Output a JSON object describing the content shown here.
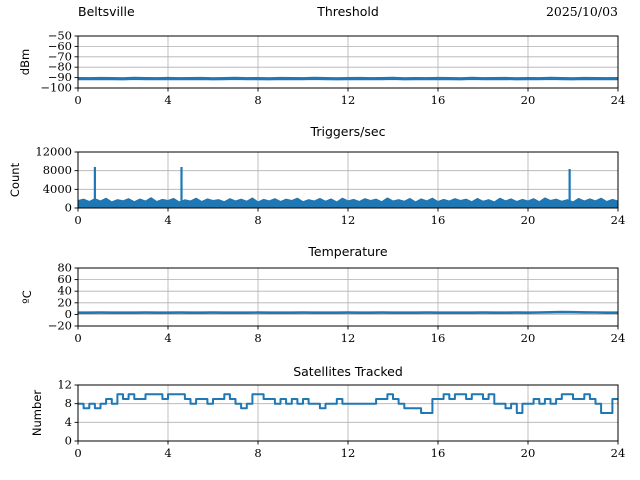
{
  "figure": {
    "station": "Beltsville",
    "date": "2025/10/03",
    "line_color": "#1f77b4",
    "grid_color": "#b0b0b0"
  },
  "chart_data": [
    {
      "type": "line",
      "title": "Threshold",
      "title_left": "Beltsville",
      "title_right": "2025/10/03",
      "ylabel": "dBm",
      "xlabel": "",
      "xlim": [
        0,
        24
      ],
      "ylim": [
        -100,
        -50
      ],
      "xticks": [
        0,
        4,
        8,
        12,
        16,
        20,
        24
      ],
      "yticks": [
        -50,
        -60,
        -70,
        -80,
        -90,
        -100
      ],
      "grid": true,
      "series": [
        {
          "name": "threshold_dbm",
          "style": "line",
          "width": 3.2,
          "x_start": 0,
          "x_step": 0.5,
          "values": [
            -91,
            -91.1,
            -90.9,
            -91,
            -91.2,
            -90.8,
            -91,
            -91.1,
            -90.9,
            -91.1,
            -91,
            -90.9,
            -91.2,
            -91,
            -90.8,
            -91.1,
            -91,
            -91.2,
            -90.9,
            -91,
            -91.1,
            -90.8,
            -91,
            -91.2,
            -91,
            -90.9,
            -91.1,
            -91,
            -90.8,
            -91.2,
            -91,
            -91.1,
            -90.9,
            -91,
            -91.2,
            -90.8,
            -91.1,
            -91,
            -90.9,
            -91.2,
            -91,
            -91.1,
            -90.8,
            -91,
            -91.2,
            -90.9,
            -91,
            -91.1,
            -91
          ]
        }
      ]
    },
    {
      "type": "area",
      "title": "Triggers/sec",
      "ylabel": "Count",
      "xlabel": "",
      "xlim": [
        0,
        24
      ],
      "ylim": [
        0,
        12000
      ],
      "xticks": [
        0,
        4,
        8,
        12,
        16,
        20,
        24
      ],
      "yticks": [
        0,
        4000,
        8000,
        12000
      ],
      "grid": true,
      "series": [
        {
          "name": "trigger_noise_band",
          "style": "area",
          "x_start": 0,
          "x_step": 0.25,
          "values": [
            1600,
            1900,
            1400,
            2000,
            1500,
            2100,
            1300,
            1800,
            1550,
            2000,
            1350,
            1900,
            1500,
            2200,
            1400,
            1850,
            1600,
            2050,
            1300,
            1750,
            1500,
            2100,
            1400,
            1950,
            1600,
            1800,
            1350,
            2000,
            1500,
            1900,
            1450,
            2150,
            1300,
            1850,
            1550,
            2000,
            1400,
            1900,
            1600,
            2100,
            1350,
            1800,
            1500,
            2050,
            1450,
            1950,
            1300,
            2100,
            1550,
            1850,
            1400,
            2000,
            1600,
            1900,
            1350,
            2150,
            1500,
            1800,
            1450,
            2050,
            1300,
            1950,
            1550,
            2100,
            1400,
            1850,
            1500,
            2000,
            1600,
            1900,
            1350,
            2050,
            1450,
            1800,
            1300,
            2100,
            1550,
            1950,
            1400,
            1850,
            1500,
            2000,
            1350,
            2150,
            1600,
            1900,
            1450,
            1800,
            1300,
            2050,
            1500,
            1950,
            1550,
            2100,
            1400,
            1850,
            1500
          ]
        },
        {
          "name": "trigger_spikes",
          "style": "vlines",
          "points": [
            {
              "x": 0.75,
              "y": 8790
            },
            {
              "x": 4.6,
              "y": 8790
            },
            {
              "x": 21.85,
              "y": 8360
            }
          ]
        }
      ]
    },
    {
      "type": "line",
      "title": "Temperature",
      "ylabel": "ºC",
      "xlabel": "",
      "xlim": [
        0,
        24
      ],
      "ylim": [
        -20,
        80
      ],
      "xticks": [
        0,
        4,
        8,
        12,
        16,
        20,
        24
      ],
      "yticks": [
        -20,
        0,
        20,
        40,
        60,
        80
      ],
      "grid": true,
      "series": [
        {
          "name": "temperature_c",
          "style": "line",
          "width": 2.6,
          "x_start": 0,
          "x_step": 0.5,
          "values": [
            3,
            3,
            3.1,
            2.9,
            3,
            3,
            3.1,
            2.9,
            3,
            3.1,
            3,
            2.9,
            3.1,
            3,
            2.9,
            3,
            3.1,
            3,
            2.9,
            3,
            3.1,
            2.9,
            3,
            3,
            3.1,
            2.9,
            3,
            3.1,
            3,
            2.9,
            3,
            3.1,
            3,
            2.9,
            3,
            3,
            3.1,
            2.9,
            3,
            3.1,
            3,
            3.3,
            3.7,
            4,
            3.8,
            3.5,
            3.2,
            3,
            3
          ]
        }
      ]
    },
    {
      "type": "step",
      "title": "Satellites Tracked",
      "ylabel": "Number",
      "xlabel": "",
      "xlim": [
        0,
        24
      ],
      "ylim": [
        0,
        12
      ],
      "xticks": [
        0,
        4,
        8,
        12,
        16,
        20,
        24
      ],
      "yticks": [
        0,
        4,
        8,
        12
      ],
      "grid": true,
      "series": [
        {
          "name": "satellites_tracked",
          "style": "step",
          "width": 2,
          "x_start": 0,
          "x_step": 0.25,
          "values": [
            8,
            7,
            8,
            7,
            8,
            9,
            8,
            10,
            9,
            10,
            9,
            9,
            10,
            10,
            10,
            9,
            10,
            10,
            10,
            9,
            8,
            9,
            9,
            8,
            9,
            9,
            10,
            9,
            8,
            7,
            8,
            10,
            10,
            9,
            9,
            8,
            9,
            8,
            9,
            8,
            9,
            8,
            8,
            7,
            8,
            8,
            9,
            8,
            8,
            8,
            8,
            8,
            8,
            9,
            9,
            10,
            9,
            8,
            7,
            7,
            7,
            6,
            6,
            9,
            9,
            10,
            9,
            10,
            10,
            9,
            10,
            10,
            9,
            10,
            8,
            8,
            7,
            8,
            6,
            8,
            8,
            9,
            8,
            9,
            8,
            9,
            10,
            10,
            9,
            9,
            10,
            9,
            8,
            6,
            6,
            9,
            9
          ]
        }
      ]
    }
  ]
}
